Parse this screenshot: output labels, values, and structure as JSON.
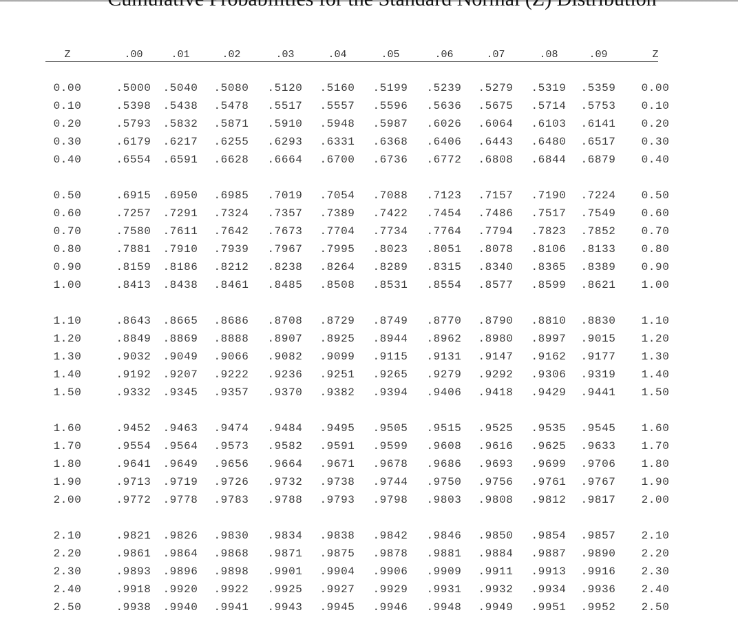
{
  "title": "Cumulative Probabilities for the Standard Normal (Z) Distribution",
  "columns": [
    "Z",
    ".00",
    ".01",
    ".02",
    ".03",
    ".04",
    ".05",
    ".06",
    ".07",
    ".08",
    ".09",
    "Z"
  ],
  "rows": [
    {
      "z": "0.00",
      "p": [
        ".5000",
        ".5040",
        ".5080",
        ".5120",
        ".5160",
        ".5199",
        ".5239",
        ".5279",
        ".5319",
        ".5359"
      ]
    },
    {
      "z": "0.10",
      "p": [
        ".5398",
        ".5438",
        ".5478",
        ".5517",
        ".5557",
        ".5596",
        ".5636",
        ".5675",
        ".5714",
        ".5753"
      ]
    },
    {
      "z": "0.20",
      "p": [
        ".5793",
        ".5832",
        ".5871",
        ".5910",
        ".5948",
        ".5987",
        ".6026",
        ".6064",
        ".6103",
        ".6141"
      ]
    },
    {
      "z": "0.30",
      "p": [
        ".6179",
        ".6217",
        ".6255",
        ".6293",
        ".6331",
        ".6368",
        ".6406",
        ".6443",
        ".6480",
        ".6517"
      ]
    },
    {
      "z": "0.40",
      "p": [
        ".6554",
        ".6591",
        ".6628",
        ".6664",
        ".6700",
        ".6736",
        ".6772",
        ".6808",
        ".6844",
        ".6879"
      ]
    },
    {
      "z": "0.50",
      "p": [
        ".6915",
        ".6950",
        ".6985",
        ".7019",
        ".7054",
        ".7088",
        ".7123",
        ".7157",
        ".7190",
        ".7224"
      ]
    },
    {
      "z": "0.60",
      "p": [
        ".7257",
        ".7291",
        ".7324",
        ".7357",
        ".7389",
        ".7422",
        ".7454",
        ".7486",
        ".7517",
        ".7549"
      ]
    },
    {
      "z": "0.70",
      "p": [
        ".7580",
        ".7611",
        ".7642",
        ".7673",
        ".7704",
        ".7734",
        ".7764",
        ".7794",
        ".7823",
        ".7852"
      ]
    },
    {
      "z": "0.80",
      "p": [
        ".7881",
        ".7910",
        ".7939",
        ".7967",
        ".7995",
        ".8023",
        ".8051",
        ".8078",
        ".8106",
        ".8133"
      ]
    },
    {
      "z": "0.90",
      "p": [
        ".8159",
        ".8186",
        ".8212",
        ".8238",
        ".8264",
        ".8289",
        ".8315",
        ".8340",
        ".8365",
        ".8389"
      ]
    },
    {
      "z": "1.00",
      "p": [
        ".8413",
        ".8438",
        ".8461",
        ".8485",
        ".8508",
        ".8531",
        ".8554",
        ".8577",
        ".8599",
        ".8621"
      ]
    },
    {
      "z": "1.10",
      "p": [
        ".8643",
        ".8665",
        ".8686",
        ".8708",
        ".8729",
        ".8749",
        ".8770",
        ".8790",
        ".8810",
        ".8830"
      ]
    },
    {
      "z": "1.20",
      "p": [
        ".8849",
        ".8869",
        ".8888",
        ".8907",
        ".8925",
        ".8944",
        ".8962",
        ".8980",
        ".8997",
        ".9015"
      ]
    },
    {
      "z": "1.30",
      "p": [
        ".9032",
        ".9049",
        ".9066",
        ".9082",
        ".9099",
        ".9115",
        ".9131",
        ".9147",
        ".9162",
        ".9177"
      ]
    },
    {
      "z": "1.40",
      "p": [
        ".9192",
        ".9207",
        ".9222",
        ".9236",
        ".9251",
        ".9265",
        ".9279",
        ".9292",
        ".9306",
        ".9319"
      ]
    },
    {
      "z": "1.50",
      "p": [
        ".9332",
        ".9345",
        ".9357",
        ".9370",
        ".9382",
        ".9394",
        ".9406",
        ".9418",
        ".9429",
        ".9441"
      ]
    },
    {
      "z": "1.60",
      "p": [
        ".9452",
        ".9463",
        ".9474",
        ".9484",
        ".9495",
        ".9505",
        ".9515",
        ".9525",
        ".9535",
        ".9545"
      ]
    },
    {
      "z": "1.70",
      "p": [
        ".9554",
        ".9564",
        ".9573",
        ".9582",
        ".9591",
        ".9599",
        ".9608",
        ".9616",
        ".9625",
        ".9633"
      ]
    },
    {
      "z": "1.80",
      "p": [
        ".9641",
        ".9649",
        ".9656",
        ".9664",
        ".9671",
        ".9678",
        ".9686",
        ".9693",
        ".9699",
        ".9706"
      ]
    },
    {
      "z": "1.90",
      "p": [
        ".9713",
        ".9719",
        ".9726",
        ".9732",
        ".9738",
        ".9744",
        ".9750",
        ".9756",
        ".9761",
        ".9767"
      ]
    },
    {
      "z": "2.00",
      "p": [
        ".9772",
        ".9778",
        ".9783",
        ".9788",
        ".9793",
        ".9798",
        ".9803",
        ".9808",
        ".9812",
        ".9817"
      ]
    },
    {
      "z": "2.10",
      "p": [
        ".9821",
        ".9826",
        ".9830",
        ".9834",
        ".9838",
        ".9842",
        ".9846",
        ".9850",
        ".9854",
        ".9857"
      ]
    },
    {
      "z": "2.20",
      "p": [
        ".9861",
        ".9864",
        ".9868",
        ".9871",
        ".9875",
        ".9878",
        ".9881",
        ".9884",
        ".9887",
        ".9890"
      ]
    },
    {
      "z": "2.30",
      "p": [
        ".9893",
        ".9896",
        ".9898",
        ".9901",
        ".9904",
        ".9906",
        ".9909",
        ".9911",
        ".9913",
        ".9916"
      ]
    },
    {
      "z": "2.40",
      "p": [
        ".9918",
        ".9920",
        ".9922",
        ".9925",
        ".9927",
        ".9929",
        ".9931",
        ".9932",
        ".9934",
        ".9936"
      ]
    },
    {
      "z": "2.50",
      "p": [
        ".9938",
        ".9940",
        ".9941",
        ".9943",
        ".9945",
        ".9946",
        ".9948",
        ".9949",
        ".9951",
        ".9952"
      ]
    }
  ]
}
